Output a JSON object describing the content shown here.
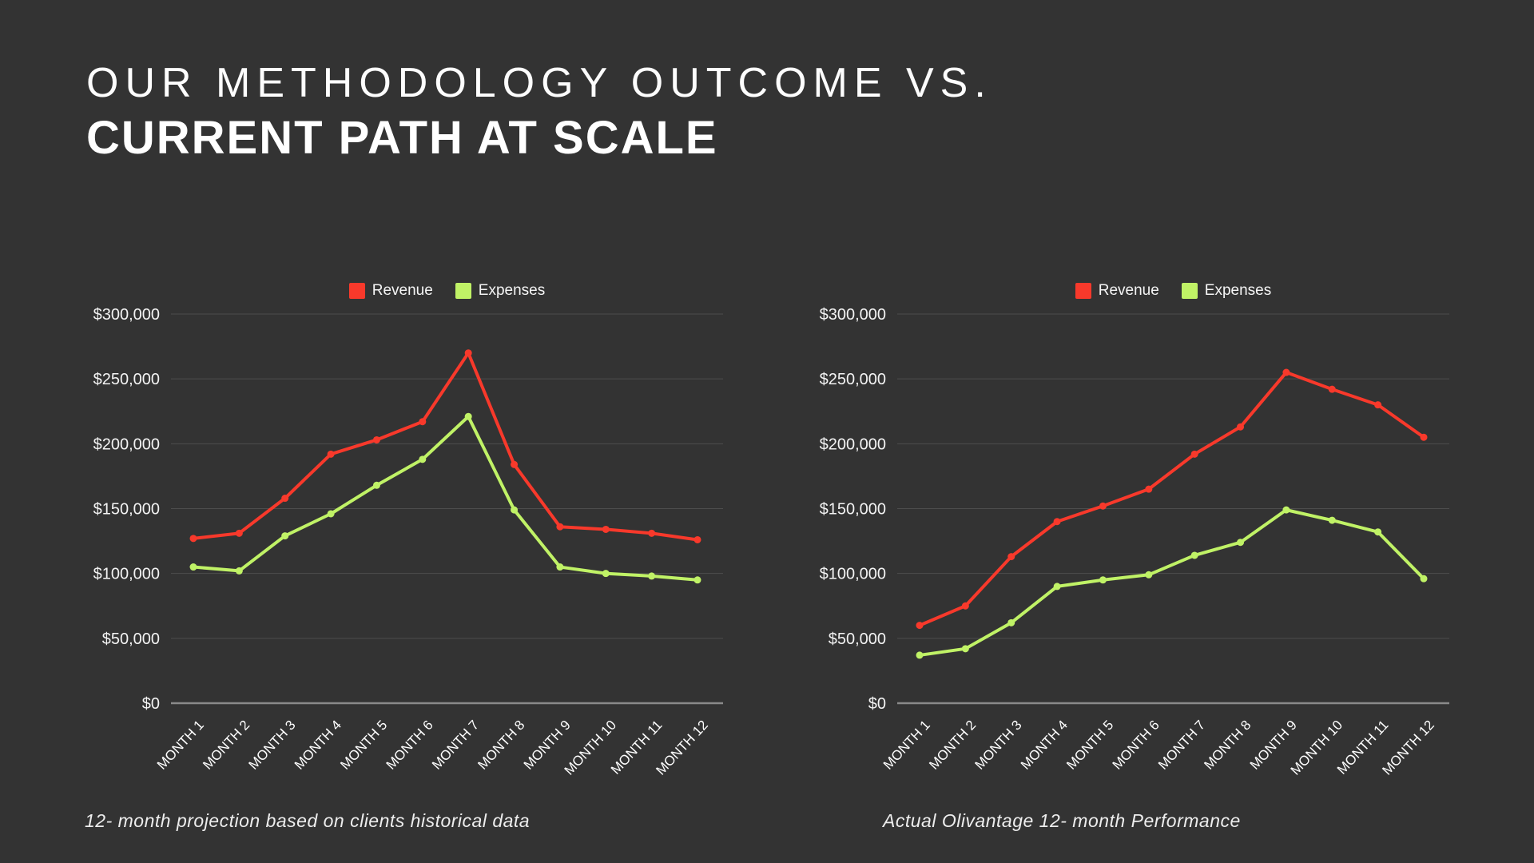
{
  "title": {
    "line1": "OUR METHODOLOGY OUTCOME VS.",
    "line2": "CURRENT PATH AT SCALE"
  },
  "colors": {
    "background": "#333333",
    "revenue": "#f8392b",
    "expenses": "#c0f266",
    "grid": "rgba(255,255,255,0.13)",
    "axis_line": "#8a8a8a",
    "y_label_text": "#f3f3f3",
    "x_label_text": "#ffffff",
    "legend_text": "#f5f5f5",
    "caption_text": "#ededed",
    "title_text": "#ffffff"
  },
  "chart_data": [
    {
      "type": "line",
      "caption": "12- month projection based on clients historical data",
      "categories": [
        "MONTH 1",
        "MONTH 2",
        "MONTH 3",
        "MONTH 4",
        "MONTH 5",
        "MONTH 6",
        "MONTH 7",
        "MONTH 8",
        "MONTH 9",
        "MONTH 10",
        "MONTH 11",
        "MONTH 12"
      ],
      "ylim": [
        0,
        300000
      ],
      "y_tick_labels": [
        "$0",
        "$50,000",
        "$100,000",
        "$150,000",
        "$200,000",
        "$250,000",
        "$300,000"
      ],
      "grid": true,
      "legend_position": "top-center",
      "series": [
        {
          "name": "Revenue",
          "color_key": "revenue",
          "values": [
            127000,
            131000,
            158000,
            192000,
            203000,
            217000,
            270000,
            184000,
            136000,
            134000,
            131000,
            126000
          ]
        },
        {
          "name": "Expenses",
          "color_key": "expenses",
          "values": [
            105000,
            102000,
            129000,
            146000,
            168000,
            188000,
            221000,
            149000,
            105000,
            100000,
            98000,
            95000
          ]
        }
      ]
    },
    {
      "type": "line",
      "caption": "Actual Olivantage 12- month Performance",
      "categories": [
        "MONTH 1",
        "MONTH 2",
        "MONTH 3",
        "MONTH 4",
        "MONTH 5",
        "MONTH 6",
        "MONTH 7",
        "MONTH 8",
        "MONTH 9",
        "MONTH 10",
        "MONTH 11",
        "MONTH 12"
      ],
      "ylim": [
        0,
        300000
      ],
      "y_tick_labels": [
        "$0",
        "$50,000",
        "$100,000",
        "$150,000",
        "$200,000",
        "$250,000",
        "$300,000"
      ],
      "grid": true,
      "legend_position": "top-center",
      "series": [
        {
          "name": "Revenue",
          "color_key": "revenue",
          "values": [
            60000,
            75000,
            113000,
            140000,
            152000,
            165000,
            192000,
            213000,
            255000,
            242000,
            230000,
            205000
          ]
        },
        {
          "name": "Expenses",
          "color_key": "expenses",
          "values": [
            37000,
            42000,
            62000,
            90000,
            95000,
            99000,
            114000,
            124000,
            149000,
            141000,
            132000,
            96000
          ]
        }
      ]
    }
  ]
}
